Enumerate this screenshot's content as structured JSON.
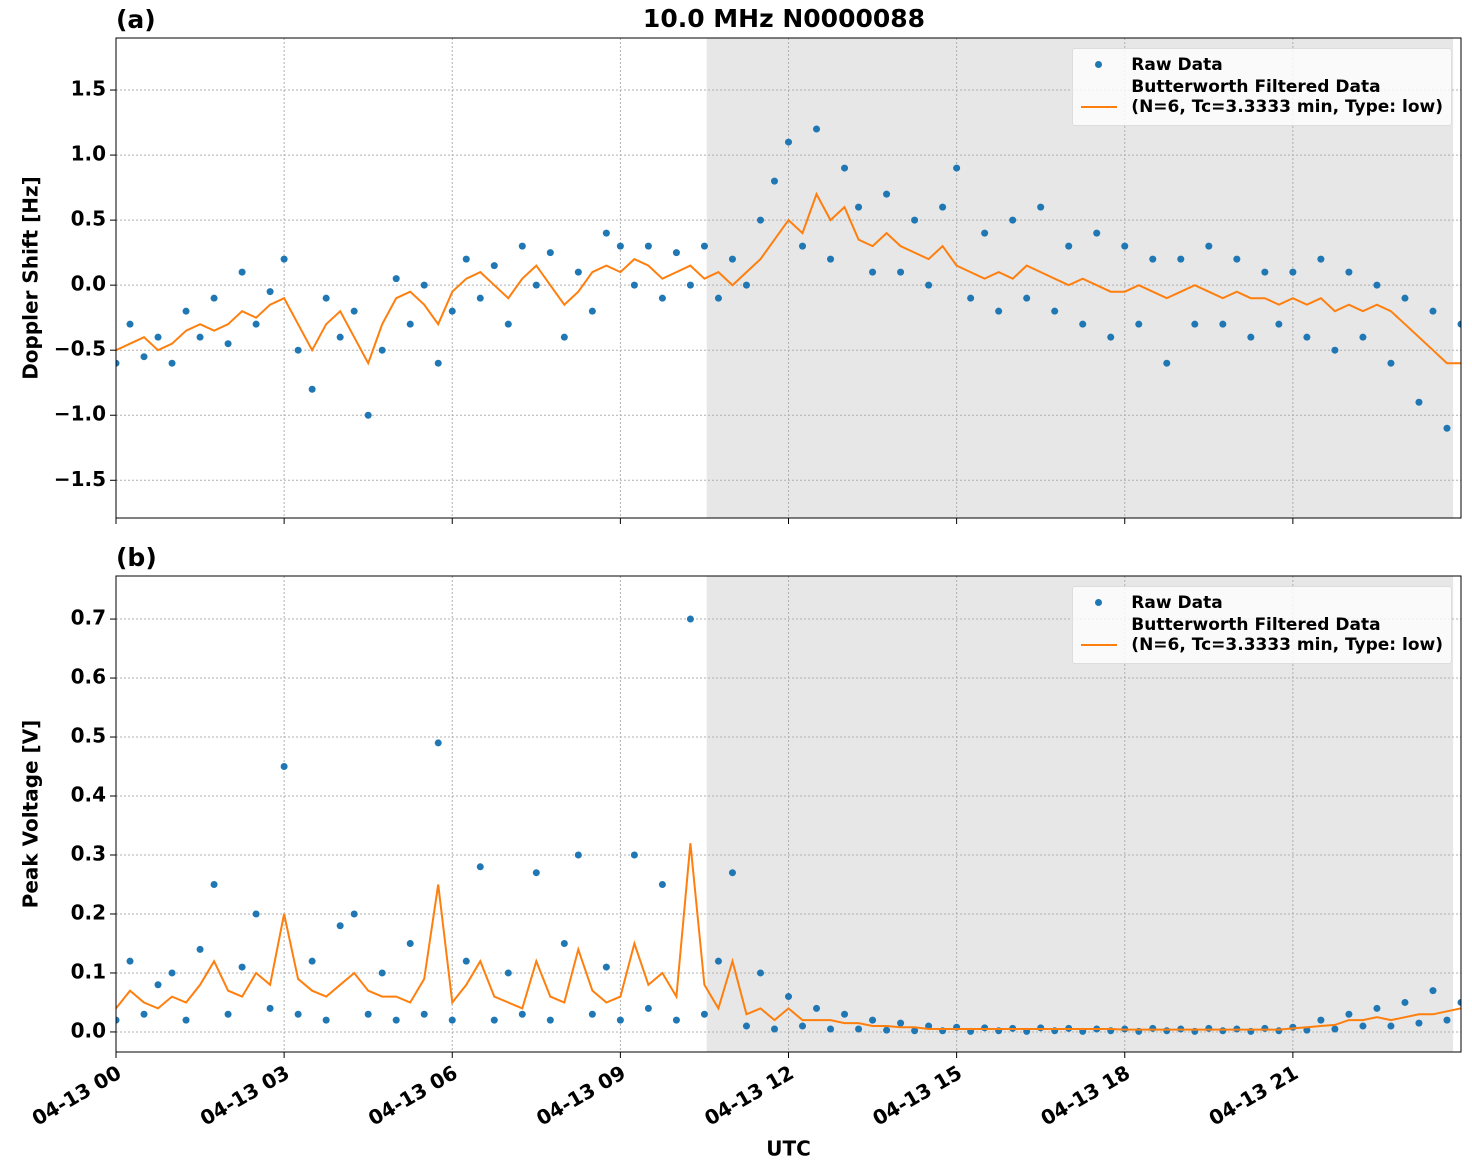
{
  "title": "10.0 MHz N0000088",
  "chart_data": [
    {
      "type": "scatter",
      "panel_label": "(a)",
      "y_label": "Doppler Shift [Hz]",
      "legend": "upper right",
      "grid": true,
      "xlim": [
        0,
        24
      ],
      "xticks": [
        0,
        3,
        6,
        9,
        12,
        15,
        18,
        21
      ],
      "show_xtick_labels": false,
      "ylim": [
        -1.79,
        1.9
      ],
      "yticks": [
        {
          "value": -1.5,
          "label": "−1.5"
        },
        {
          "value": -1,
          "label": "−1.0"
        },
        {
          "value": -0.5,
          "label": "−0.5"
        },
        {
          "value": 0,
          "label": "0.0"
        },
        0.5,
        {
          "value": 1,
          "label": "1.0"
        },
        1.5
      ],
      "shade": [
        10.54,
        23.86
      ],
      "shade_color": "#e7e7e7",
      "x": [
        0,
        0.25,
        0.5,
        0.75,
        1,
        1.25,
        1.5,
        1.75,
        2,
        2.25,
        2.5,
        2.75,
        3,
        3.25,
        3.5,
        3.75,
        4,
        4.25,
        4.5,
        4.75,
        5,
        5.25,
        5.5,
        5.75,
        6,
        6.25,
        6.5,
        6.75,
        7,
        7.25,
        7.5,
        7.75,
        8,
        8.25,
        8.5,
        8.75,
        9,
        9.25,
        9.5,
        9.75,
        10,
        10.25,
        10.5,
        10.75,
        11,
        11.25,
        11.5,
        11.75,
        12,
        12.25,
        12.5,
        12.75,
        13,
        13.25,
        13.5,
        13.75,
        14,
        14.25,
        14.5,
        14.75,
        15,
        15.25,
        15.5,
        15.75,
        16,
        16.25,
        16.5,
        16.75,
        17,
        17.25,
        17.5,
        17.75,
        18,
        18.25,
        18.5,
        18.75,
        19,
        19.25,
        19.5,
        19.75,
        20,
        20.25,
        20.5,
        20.75,
        21,
        21.25,
        21.5,
        21.75,
        22,
        22.25,
        22.5,
        22.75,
        23,
        23.25,
        23.5,
        23.75,
        24
      ],
      "series": [
        {
          "name": "Raw Data",
          "style": "markers",
          "color": "#1f77b4",
          "values": [
            -0.6,
            -0.3,
            -0.55,
            -0.4,
            -0.6,
            -0.2,
            -0.4,
            -0.1,
            -0.45,
            0.1,
            -0.3,
            -0.05,
            0.2,
            -0.5,
            -0.8,
            -0.1,
            -0.4,
            -0.2,
            -1.0,
            -0.5,
            0.05,
            -0.3,
            0.0,
            -0.6,
            -0.2,
            0.2,
            -0.1,
            0.15,
            -0.3,
            0.3,
            0.0,
            0.25,
            -0.4,
            0.1,
            -0.2,
            0.4,
            0.3,
            0.0,
            0.3,
            -0.1,
            0.25,
            0.0,
            0.3,
            -0.1,
            0.2,
            0.0,
            0.5,
            0.8,
            1.1,
            0.3,
            1.2,
            0.2,
            0.9,
            0.6,
            0.1,
            0.7,
            0.1,
            0.5,
            0.0,
            0.6,
            0.9,
            -0.1,
            0.4,
            -0.2,
            0.5,
            -0.1,
            0.6,
            -0.2,
            0.3,
            -0.3,
            0.4,
            -0.4,
            0.3,
            -0.3,
            0.2,
            -0.6,
            0.2,
            -0.3,
            0.3,
            -0.3,
            0.2,
            -0.4,
            0.1,
            -0.3,
            0.1,
            -0.4,
            0.2,
            -0.5,
            0.1,
            -0.4,
            0.0,
            -0.6,
            -0.1,
            -0.9,
            -0.2,
            -1.1,
            -0.3
          ]
        },
        {
          "name": "Butterworth Filtered Data\n(N=6, Tc=3.3333 min, Type: low)",
          "style": "line",
          "color": "#ff7f0e",
          "values": [
            -0.5,
            -0.45,
            -0.4,
            -0.5,
            -0.45,
            -0.35,
            -0.3,
            -0.35,
            -0.3,
            -0.2,
            -0.25,
            -0.15,
            -0.1,
            -0.3,
            -0.5,
            -0.3,
            -0.2,
            -0.4,
            -0.6,
            -0.3,
            -0.1,
            -0.05,
            -0.15,
            -0.3,
            -0.05,
            0.05,
            0.1,
            0.0,
            -0.1,
            0.05,
            0.15,
            0.0,
            -0.15,
            -0.05,
            0.1,
            0.15,
            0.1,
            0.2,
            0.15,
            0.05,
            0.1,
            0.15,
            0.05,
            0.1,
            0.0,
            0.1,
            0.2,
            0.35,
            0.5,
            0.4,
            0.7,
            0.5,
            0.6,
            0.35,
            0.3,
            0.4,
            0.3,
            0.25,
            0.2,
            0.3,
            0.15,
            0.1,
            0.05,
            0.1,
            0.05,
            0.15,
            0.1,
            0.05,
            0.0,
            0.05,
            0.0,
            -0.05,
            -0.05,
            0.0,
            -0.05,
            -0.1,
            -0.05,
            0.0,
            -0.05,
            -0.1,
            -0.05,
            -0.1,
            -0.1,
            -0.15,
            -0.1,
            -0.15,
            -0.1,
            -0.2,
            -0.15,
            -0.2,
            -0.15,
            -0.2,
            -0.3,
            -0.4,
            -0.5,
            -0.6,
            -0.6
          ]
        }
      ]
    },
    {
      "type": "scatter",
      "panel_label": "(b)",
      "y_label": "Peak Voltage [V]",
      "x_label": "UTC",
      "legend": "upper right",
      "grid": true,
      "xlim": [
        0,
        24
      ],
      "xticks": [
        {
          "value": 0,
          "label": "04-13 00"
        },
        {
          "value": 3,
          "label": "04-13 03"
        },
        {
          "value": 6,
          "label": "04-13 06"
        },
        {
          "value": 9,
          "label": "04-13 09"
        },
        {
          "value": 12,
          "label": "04-13 12"
        },
        {
          "value": 15,
          "label": "04-13 15"
        },
        {
          "value": 18,
          "label": "04-13 18"
        },
        {
          "value": 21,
          "label": "04-13 21"
        }
      ],
      "show_xtick_labels": true,
      "ylim": [
        -0.034,
        0.773
      ],
      "yticks": [
        {
          "value": 0,
          "label": "0.0"
        },
        0.1,
        0.2,
        0.3,
        0.4,
        0.5,
        0.6,
        0.7
      ],
      "shade": [
        10.54,
        23.86
      ],
      "shade_color": "#e7e7e7",
      "x": [
        0,
        0.25,
        0.5,
        0.75,
        1,
        1.25,
        1.5,
        1.75,
        2,
        2.25,
        2.5,
        2.75,
        3,
        3.25,
        3.5,
        3.75,
        4,
        4.25,
        4.5,
        4.75,
        5,
        5.25,
        5.5,
        5.75,
        6,
        6.25,
        6.5,
        6.75,
        7,
        7.25,
        7.5,
        7.75,
        8,
        8.25,
        8.5,
        8.75,
        9,
        9.25,
        9.5,
        9.75,
        10,
        10.25,
        10.5,
        10.75,
        11,
        11.25,
        11.5,
        11.75,
        12,
        12.25,
        12.5,
        12.75,
        13,
        13.25,
        13.5,
        13.75,
        14,
        14.25,
        14.5,
        14.75,
        15,
        15.25,
        15.5,
        15.75,
        16,
        16.25,
        16.5,
        16.75,
        17,
        17.25,
        17.5,
        17.75,
        18,
        18.25,
        18.5,
        18.75,
        19,
        19.25,
        19.5,
        19.75,
        20,
        20.25,
        20.5,
        20.75,
        21,
        21.25,
        21.5,
        21.75,
        22,
        22.25,
        22.5,
        22.75,
        23,
        23.25,
        23.5,
        23.75,
        24
      ],
      "series": [
        {
          "name": "Raw Data",
          "style": "markers",
          "color": "#1f77b4",
          "values": [
            0.02,
            0.12,
            0.03,
            0.08,
            0.1,
            0.02,
            0.14,
            0.25,
            0.03,
            0.11,
            0.2,
            0.04,
            0.45,
            0.03,
            0.12,
            0.02,
            0.18,
            0.2,
            0.03,
            0.1,
            0.02,
            0.15,
            0.03,
            0.49,
            0.02,
            0.12,
            0.28,
            0.02,
            0.1,
            0.03,
            0.27,
            0.02,
            0.15,
            0.3,
            0.03,
            0.11,
            0.02,
            0.3,
            0.04,
            0.25,
            0.02,
            0.7,
            0.03,
            0.12,
            0.27,
            0.01,
            0.1,
            0.005,
            0.06,
            0.01,
            0.04,
            0.005,
            0.03,
            0.005,
            0.02,
            0.003,
            0.015,
            0.002,
            0.01,
            0.002,
            0.008,
            0.001,
            0.007,
            0.002,
            0.006,
            0.001,
            0.007,
            0.002,
            0.006,
            0.001,
            0.005,
            0.002,
            0.005,
            0.001,
            0.006,
            0.002,
            0.005,
            0.001,
            0.006,
            0.002,
            0.005,
            0.001,
            0.006,
            0.002,
            0.008,
            0.003,
            0.02,
            0.005,
            0.03,
            0.01,
            0.04,
            0.01,
            0.05,
            0.015,
            0.07,
            0.02,
            0.05
          ]
        },
        {
          "name": "Butterworth Filtered Data\n(N=6, Tc=3.3333 min, Type: low)",
          "style": "line",
          "color": "#ff7f0e",
          "values": [
            0.04,
            0.07,
            0.05,
            0.04,
            0.06,
            0.05,
            0.08,
            0.12,
            0.07,
            0.06,
            0.1,
            0.08,
            0.2,
            0.09,
            0.07,
            0.06,
            0.08,
            0.1,
            0.07,
            0.06,
            0.06,
            0.05,
            0.09,
            0.25,
            0.05,
            0.08,
            0.12,
            0.06,
            0.05,
            0.04,
            0.12,
            0.06,
            0.05,
            0.14,
            0.07,
            0.05,
            0.06,
            0.15,
            0.08,
            0.1,
            0.06,
            0.32,
            0.08,
            0.04,
            0.12,
            0.03,
            0.04,
            0.02,
            0.04,
            0.02,
            0.02,
            0.02,
            0.015,
            0.015,
            0.01,
            0.01,
            0.008,
            0.008,
            0.005,
            0.005,
            0.005,
            0.005,
            0.005,
            0.005,
            0.005,
            0.005,
            0.005,
            0.005,
            0.005,
            0.005,
            0.005,
            0.005,
            0.004,
            0.004,
            0.004,
            0.004,
            0.004,
            0.004,
            0.004,
            0.004,
            0.004,
            0.004,
            0.004,
            0.004,
            0.006,
            0.008,
            0.01,
            0.012,
            0.02,
            0.02,
            0.025,
            0.02,
            0.025,
            0.03,
            0.03,
            0.035,
            0.04
          ]
        }
      ]
    }
  ]
}
